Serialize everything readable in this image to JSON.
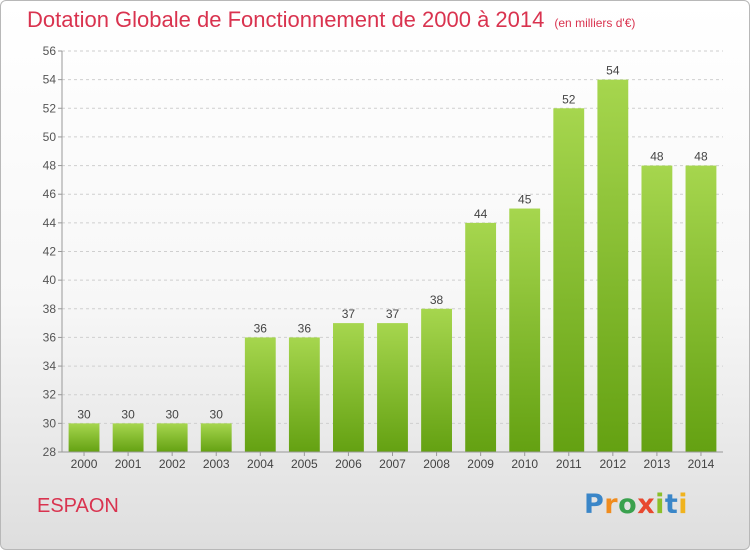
{
  "title": "Dotation Globale de Fonctionnement de 2000 à 2014",
  "subtitle": "(en milliers d'€)",
  "commune": "ESPAON",
  "logo": {
    "letters": [
      "P",
      "r",
      "o",
      "x",
      "i",
      "t",
      "i"
    ],
    "colors": [
      "#3a86c8",
      "#f08c1e",
      "#3aa14e",
      "#e8482f",
      "#8bbf2a",
      "#3a86c8",
      "#f0b31e"
    ]
  },
  "colors": {
    "title": "#d9334f",
    "bar_top": "#a6d64e",
    "bar_bottom": "#64a112",
    "grid": "#cfcfcf",
    "axis": "#999999"
  },
  "chart_data": {
    "type": "bar",
    "categories": [
      "2000",
      "2001",
      "2002",
      "2003",
      "2004",
      "2005",
      "2006",
      "2007",
      "2008",
      "2009",
      "2010",
      "2011",
      "2012",
      "2013",
      "2014"
    ],
    "values": [
      30,
      30,
      30,
      30,
      36,
      36,
      37,
      37,
      38,
      44,
      45,
      52,
      54,
      48,
      48
    ],
    "ylim": [
      28,
      56
    ],
    "yticks": [
      28,
      30,
      32,
      34,
      36,
      38,
      40,
      42,
      44,
      46,
      48,
      50,
      52,
      54,
      56
    ],
    "grid": true,
    "legend": "none"
  }
}
